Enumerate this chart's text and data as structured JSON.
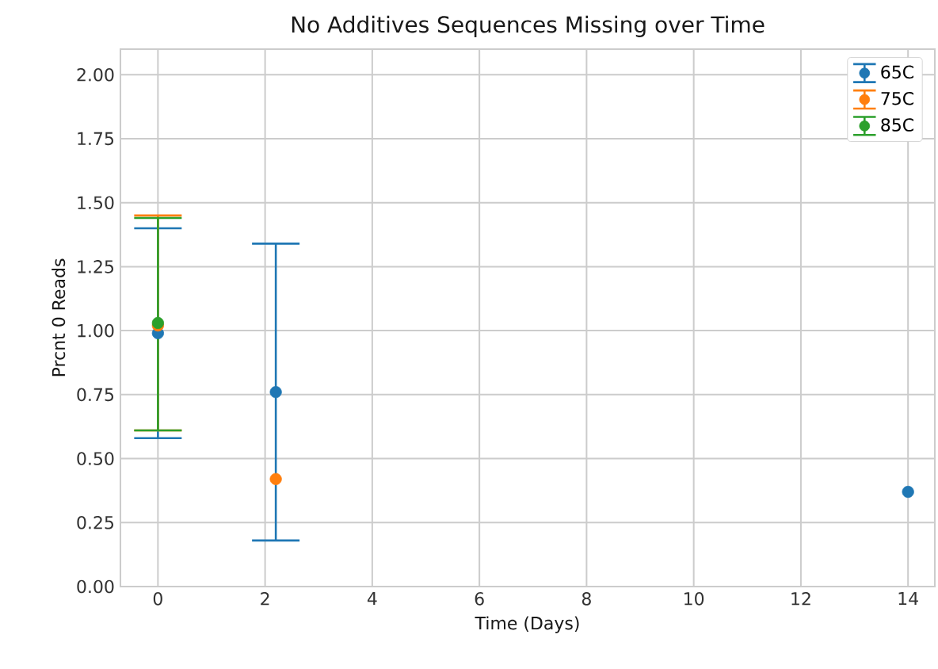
{
  "chart_data": {
    "type": "scatter",
    "title": "No Additives Sequences Missing over Time",
    "xlabel": "Time (Days)",
    "ylabel": "Prcnt 0 Reads",
    "series": [
      {
        "name": "65C",
        "color": "#1f77b4",
        "x": [
          0,
          2.2,
          14
        ],
        "values": [
          0.99,
          0.76,
          0.37
        ],
        "errors": [
          [
            0.58,
            1.4
          ],
          [
            0.18,
            1.34
          ],
          null
        ]
      },
      {
        "name": "75C",
        "color": "#ff7f0e",
        "x": [
          0,
          2.2
        ],
        "values": [
          1.02,
          0.42
        ],
        "errors": [
          [
            0.61,
            1.45
          ],
          null
        ]
      },
      {
        "name": "85C",
        "color": "#2ca02c",
        "x": [
          0
        ],
        "values": [
          1.03
        ],
        "errors": [
          [
            0.61,
            1.44
          ]
        ]
      }
    ],
    "xlim": [
      -0.7,
      14.5
    ],
    "ylim": [
      0,
      2.1
    ],
    "xticks": [
      0,
      2,
      4,
      6,
      8,
      10,
      12,
      14
    ],
    "yticks": [
      {
        "value": 0,
        "label": "0.00"
      },
      {
        "value": 0.25,
        "label": "0.25"
      },
      {
        "value": 0.5,
        "label": "0.50"
      },
      {
        "value": 0.75,
        "label": "0.75"
      },
      {
        "value": 1,
        "label": "1.00"
      },
      {
        "value": 1.25,
        "label": "1.25"
      },
      {
        "value": 1.5,
        "label": "1.50"
      },
      {
        "value": 1.75,
        "label": "1.75"
      },
      {
        "value": 2,
        "label": "2.00"
      }
    ],
    "grid": true,
    "legend": "top right",
    "marker": "circle"
  }
}
